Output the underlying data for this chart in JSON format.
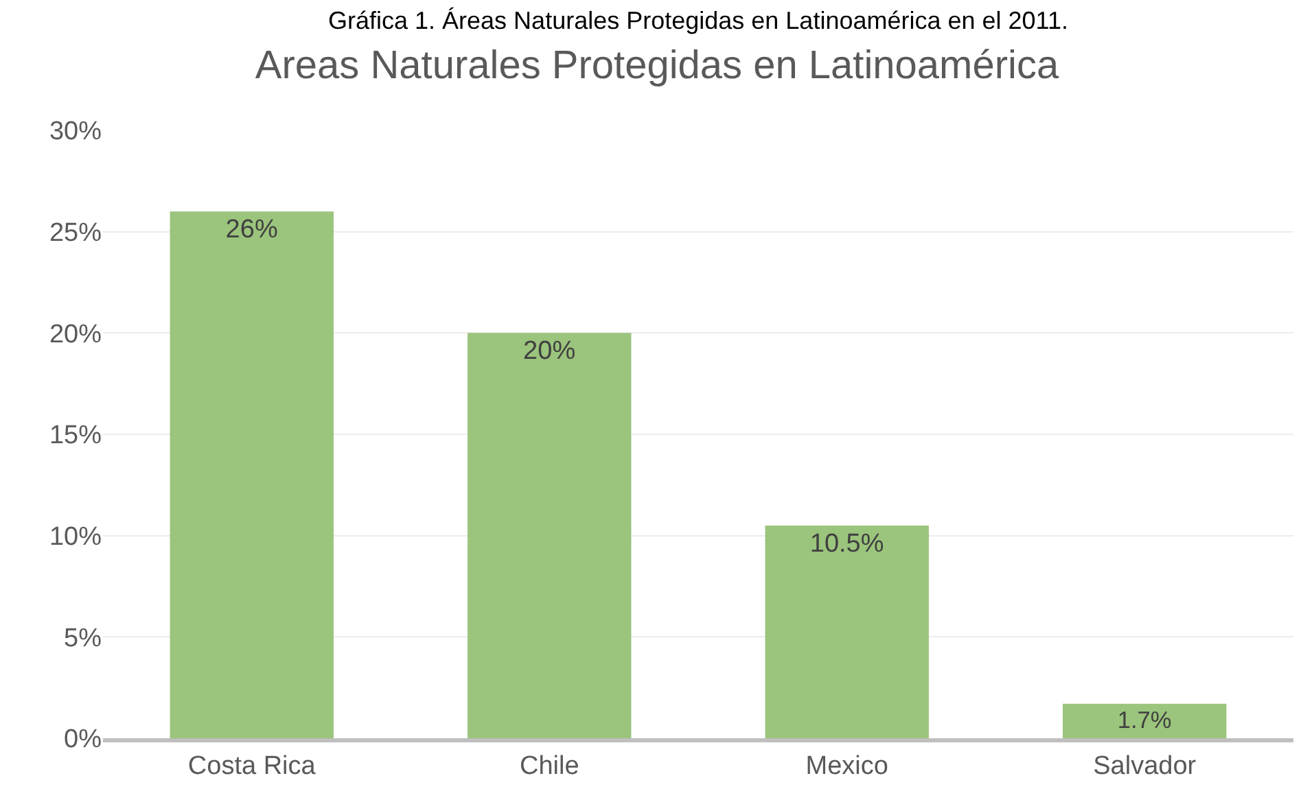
{
  "chart_data": {
    "type": "bar",
    "title": "Areas Naturales Protegidas en Latinoamérica",
    "annotations": [
      "Gráfica 1. Áreas Naturales Protegidas en Latinoamérica en el 2011."
    ],
    "categories": [
      "Costa Rica",
      "Chile",
      "Mexico",
      "Salvador"
    ],
    "values": [
      26,
      20,
      10.5,
      1.7
    ],
    "value_labels": [
      "26%",
      "20%",
      "10.5%",
      "1.7%"
    ],
    "color": "#9bc47c",
    "ylim": [
      0,
      30
    ],
    "yticks": [
      {
        "value": 0,
        "label": "0%"
      },
      {
        "value": 5,
        "label": "5%"
      },
      {
        "value": 10,
        "label": "10%"
      },
      {
        "value": 15,
        "label": "15%"
      },
      {
        "value": 20,
        "label": "20%"
      },
      {
        "value": 25,
        "label": "25%"
      },
      {
        "value": 30,
        "label": "30%"
      }
    ],
    "grid": "y",
    "legend": false
  }
}
